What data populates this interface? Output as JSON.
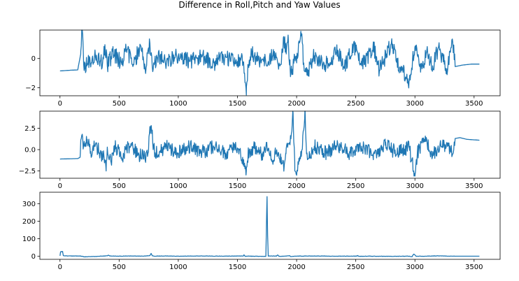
{
  "title": "Difference in Roll,Pitch and Yaw Values",
  "line_color": "#1f77b4",
  "chart_data": [
    {
      "type": "line",
      "xlim": [
        -170,
        3720
      ],
      "ylim": [
        -2.55,
        1.95
      ],
      "xticks": [
        0,
        500,
        1000,
        1500,
        2000,
        2500,
        3000,
        3500
      ],
      "yticks": [
        -2,
        0
      ],
      "ytick_labels": [
        "−2",
        "0"
      ],
      "series": [
        {
          "keyframes": [
            [
              0,
              -0.85
            ],
            [
              90,
              -0.8
            ],
            [
              150,
              -0.78
            ],
            [
              175,
              0.3
            ],
            [
              185,
              1.75
            ],
            [
              192,
              1.65
            ],
            [
              200,
              -0.4
            ],
            [
              210,
              -0.7
            ],
            [
              225,
              -0.2
            ],
            [
              300,
              0.1
            ],
            [
              360,
              -0.3
            ],
            [
              380,
              0.95
            ],
            [
              400,
              -0.5
            ],
            [
              450,
              0.4
            ],
            [
              520,
              -0.3
            ],
            [
              560,
              0.6
            ],
            [
              620,
              -0.4
            ],
            [
              680,
              0.9
            ],
            [
              720,
              -0.7
            ],
            [
              760,
              1.05
            ],
            [
              780,
              -0.6
            ],
            [
              840,
              0.2
            ],
            [
              900,
              -0.3
            ],
            [
              1000,
              0.2
            ],
            [
              1100,
              -0.2
            ],
            [
              1200,
              0.1
            ],
            [
              1300,
              -0.3
            ],
            [
              1400,
              0.1
            ],
            [
              1500,
              -0.2
            ],
            [
              1540,
              0.2
            ],
            [
              1560,
              -1.0
            ],
            [
              1575,
              -2.5
            ],
            [
              1590,
              -0.5
            ],
            [
              1620,
              0.4
            ],
            [
              1700,
              -0.3
            ],
            [
              1800,
              0.2
            ],
            [
              1870,
              -0.4
            ],
            [
              1890,
              1.5
            ],
            [
              1910,
              0.6
            ],
            [
              1930,
              1.3
            ],
            [
              1945,
              -0.7
            ],
            [
              1960,
              -1.1
            ],
            [
              1980,
              0.3
            ],
            [
              2000,
              -0.3
            ],
            [
              2020,
              1.2
            ],
            [
              2040,
              1.55
            ],
            [
              2060,
              -0.3
            ],
            [
              2100,
              -0.8
            ],
            [
              2150,
              0.2
            ],
            [
              2250,
              -0.4
            ],
            [
              2350,
              0.5
            ],
            [
              2400,
              -0.6
            ],
            [
              2480,
              0.9
            ],
            [
              2550,
              -0.5
            ],
            [
              2650,
              0.8
            ],
            [
              2700,
              -0.8
            ],
            [
              2800,
              1.0
            ],
            [
              2870,
              -0.6
            ],
            [
              2950,
              -1.55
            ],
            [
              3000,
              0.8
            ],
            [
              3060,
              -0.7
            ],
            [
              3100,
              0.5
            ],
            [
              3150,
              -0.5
            ],
            [
              3200,
              0.8
            ],
            [
              3270,
              -0.7
            ],
            [
              3320,
              1.1
            ],
            [
              3340,
              -0.55
            ],
            [
              3400,
              -0.45
            ],
            [
              3480,
              -0.38
            ],
            [
              3545,
              -0.38
            ]
          ],
          "noise": [
            [
              175,
              3340,
              0.55,
              "A"
            ]
          ]
        }
      ]
    },
    {
      "type": "line",
      "xlim": [
        -170,
        3720
      ],
      "ylim": [
        -3.35,
        4.5
      ],
      "xticks": [
        0,
        500,
        1000,
        1500,
        2000,
        2500,
        3000,
        3500
      ],
      "yticks": [
        -2.5,
        0,
        2.5
      ],
      "ytick_labels": [
        "−2.5",
        "0.0",
        "2.5"
      ],
      "series": [
        {
          "keyframes": [
            [
              0,
              -1.1
            ],
            [
              150,
              -1.05
            ],
            [
              170,
              -0.9
            ],
            [
              180,
              1.3
            ],
            [
              200,
              0.5
            ],
            [
              230,
              1.2
            ],
            [
              260,
              -0.2
            ],
            [
              300,
              0.6
            ],
            [
              340,
              -0.3
            ],
            [
              380,
              -1.2
            ],
            [
              390,
              -2.5
            ],
            [
              400,
              0.3
            ],
            [
              430,
              -1.4
            ],
            [
              470,
              0.4
            ],
            [
              520,
              -0.9
            ],
            [
              600,
              0.7
            ],
            [
              660,
              -0.6
            ],
            [
              740,
              -0.8
            ],
            [
              755,
              1.8
            ],
            [
              770,
              2.8
            ],
            [
              790,
              0.2
            ],
            [
              830,
              -0.6
            ],
            [
              900,
              0.5
            ],
            [
              1000,
              -0.4
            ],
            [
              1100,
              0.4
            ],
            [
              1200,
              -0.3
            ],
            [
              1300,
              0.3
            ],
            [
              1400,
              -0.4
            ],
            [
              1500,
              0.2
            ],
            [
              1560,
              -1.6
            ],
            [
              1575,
              -2.5
            ],
            [
              1590,
              -0.4
            ],
            [
              1650,
              0.3
            ],
            [
              1700,
              -0.6
            ],
            [
              1750,
              0.2
            ],
            [
              1790,
              -1.3
            ],
            [
              1830,
              -0.3
            ],
            [
              1870,
              -0.9
            ],
            [
              1890,
              -2.0
            ],
            [
              1910,
              -0.5
            ],
            [
              1950,
              1.5
            ],
            [
              1970,
              4.3
            ],
            [
              1985,
              -2.5
            ],
            [
              2000,
              -3.0
            ],
            [
              2020,
              -1.0
            ],
            [
              2050,
              0.5
            ],
            [
              2070,
              4.5
            ],
            [
              2085,
              -0.5
            ],
            [
              2110,
              -1.0
            ],
            [
              2150,
              0.4
            ],
            [
              2250,
              -0.4
            ],
            [
              2350,
              0.5
            ],
            [
              2450,
              -0.4
            ],
            [
              2550,
              0.4
            ],
            [
              2650,
              -0.4
            ],
            [
              2750,
              0.5
            ],
            [
              2850,
              -0.4
            ],
            [
              2950,
              0.3
            ],
            [
              2990,
              -2.5
            ],
            [
              3000,
              -3.1
            ],
            [
              3020,
              -0.5
            ],
            [
              3080,
              1.2
            ],
            [
              3150,
              -0.5
            ],
            [
              3250,
              0.6
            ],
            [
              3320,
              -0.5
            ],
            [
              3340,
              1.3
            ],
            [
              3380,
              1.4
            ],
            [
              3440,
              1.2
            ],
            [
              3545,
              1.1
            ]
          ],
          "noise": [
            [
              175,
              3340,
              0.85,
              "B"
            ]
          ]
        }
      ]
    },
    {
      "type": "line",
      "xlim": [
        -170,
        3720
      ],
      "ylim": [
        -17,
        365
      ],
      "xticks": [
        0,
        500,
        1000,
        1500,
        2000,
        2500,
        3000,
        3500
      ],
      "yticks": [
        0,
        100,
        200,
        300
      ],
      "ytick_labels": [
        "0",
        "100",
        "200",
        "300"
      ],
      "series": [
        {
          "keyframes": [
            [
              0,
              3
            ],
            [
              5,
              25
            ],
            [
              10,
              28
            ],
            [
              15,
              25
            ],
            [
              22,
              28
            ],
            [
              28,
              4
            ],
            [
              40,
              3
            ],
            [
              150,
              2
            ],
            [
              190,
              1
            ],
            [
              200,
              -3
            ],
            [
              300,
              -1
            ],
            [
              400,
              3
            ],
            [
              410,
              7
            ],
            [
              420,
              2
            ],
            [
              500,
              1
            ],
            [
              600,
              2
            ],
            [
              700,
              1
            ],
            [
              760,
              4
            ],
            [
              770,
              17
            ],
            [
              780,
              3
            ],
            [
              800,
              1
            ],
            [
              900,
              2
            ],
            [
              1000,
              1
            ],
            [
              1200,
              2
            ],
            [
              1400,
              1
            ],
            [
              1550,
              2
            ],
            [
              1555,
              9
            ],
            [
              1565,
              0
            ],
            [
              1600,
              1
            ],
            [
              1700,
              0
            ],
            [
              1740,
              0
            ],
            [
              1745,
              175
            ],
            [
              1750,
              340
            ],
            [
              1755,
              120
            ],
            [
              1760,
              1
            ],
            [
              1800,
              2
            ],
            [
              1830,
              1
            ],
            [
              1840,
              8
            ],
            [
              1850,
              0
            ],
            [
              1900,
              1
            ],
            [
              1940,
              4
            ],
            [
              1950,
              -1
            ],
            [
              2000,
              1
            ],
            [
              2050,
              1
            ],
            [
              2100,
              2
            ],
            [
              2300,
              1
            ],
            [
              2510,
              1
            ],
            [
              2515,
              5
            ],
            [
              2525,
              0
            ],
            [
              2600,
              1
            ],
            [
              2800,
              0
            ],
            [
              2950,
              1
            ],
            [
              2975,
              -2
            ],
            [
              2990,
              13
            ],
            [
              3000,
              8
            ],
            [
              3010,
              0
            ],
            [
              3100,
              1
            ],
            [
              3200,
              3
            ],
            [
              3300,
              1
            ],
            [
              3545,
              1
            ]
          ],
          "noise": [
            [
              40,
              3340,
              1.0,
              "C"
            ]
          ]
        }
      ]
    }
  ]
}
